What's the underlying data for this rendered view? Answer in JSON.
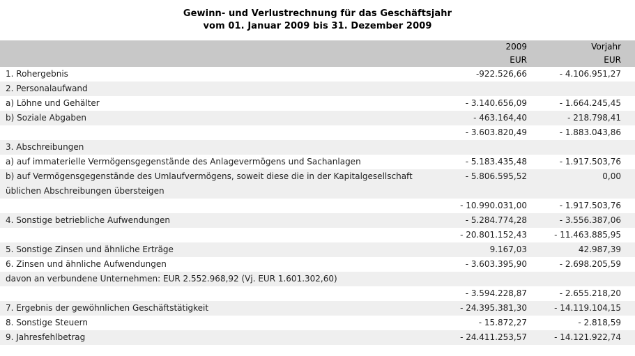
{
  "title": {
    "line1": "Gewinn- und Verlustrechnung für das Geschäftsjahr",
    "line2": "vom 01. Januar 2009 bis 31. Dezember 2009"
  },
  "table": {
    "header": {
      "current_year": "2009",
      "current_currency": "EUR",
      "previous_label": "Vorjahr",
      "previous_currency": "EUR"
    },
    "rows": [
      {
        "label": "1. Rohergebnis",
        "value_2009": "-922.526,66",
        "value_vorjahr": "- 4.106.951,27",
        "shaded": false
      },
      {
        "label": "2. Personalaufwand",
        "value_2009": "",
        "value_vorjahr": "",
        "shaded": true
      },
      {
        "label": "a) Löhne und Gehälter",
        "value_2009": "- 3.140.656,09",
        "value_vorjahr": "- 1.664.245,45",
        "shaded": false
      },
      {
        "label": "b) Soziale Abgaben",
        "value_2009": "- 463.164,40",
        "value_vorjahr": "- 218.798,41",
        "shaded": true
      },
      {
        "label": "",
        "value_2009": "- 3.603.820,49",
        "value_vorjahr": "- 1.883.043,86",
        "shaded": false
      },
      {
        "label": "3. Abschreibungen",
        "value_2009": "",
        "value_vorjahr": "",
        "shaded": true
      },
      {
        "label": "a) auf immaterielle Vermögensgegenstände des Anlagevermögens und Sachanlagen",
        "value_2009": "- 5.183.435,48",
        "value_vorjahr": "- 1.917.503,76",
        "shaded": false
      },
      {
        "label": "b) auf Vermögensgegenstände des Umlaufvermögens, soweit diese die in der Kapitalgesellschaft üblichen Abschreibungen übersteigen",
        "value_2009": "- 5.806.595,52",
        "value_vorjahr": "0,00",
        "shaded": true
      },
      {
        "label": "",
        "value_2009": "- 10.990.031,00",
        "value_vorjahr": "- 1.917.503,76",
        "shaded": false
      },
      {
        "label": "4. Sonstige betriebliche Aufwendungen",
        "value_2009": "- 5.284.774,28",
        "value_vorjahr": "- 3.556.387,06",
        "shaded": true
      },
      {
        "label": "",
        "value_2009": "- 20.801.152,43",
        "value_vorjahr": "- 11.463.885,95",
        "shaded": false
      },
      {
        "label": "5. Sonstige Zinsen und ähnliche Erträge",
        "value_2009": "9.167,03",
        "value_vorjahr": "42.987,39",
        "shaded": true
      },
      {
        "label": "6. Zinsen und ähnliche Aufwendungen",
        "value_2009": "- 3.603.395,90",
        "value_vorjahr": "- 2.698.205,59",
        "shaded": false
      },
      {
        "label": "davon an verbundene Unternehmen: EUR 2.552.968,92 (Vj. EUR 1.601.302,60)",
        "value_2009": "",
        "value_vorjahr": "",
        "shaded": true
      },
      {
        "label": "",
        "value_2009": "- 3.594.228,87",
        "value_vorjahr": "- 2.655.218,20",
        "shaded": false
      },
      {
        "label": "7. Ergebnis der gewöhnlichen Geschäftstätigkeit",
        "value_2009": "- 24.395.381,30",
        "value_vorjahr": "- 14.119.104,15",
        "shaded": true
      },
      {
        "label": "8. Sonstige Steuern",
        "value_2009": "- 15.872,27",
        "value_vorjahr": "- 2.818,59",
        "shaded": false
      },
      {
        "label": "9. Jahresfehlbetrag",
        "value_2009": "- 24.411.253,57",
        "value_vorjahr": "- 14.121.922,74",
        "shaded": true
      }
    ]
  },
  "colors": {
    "header_bg": "#c8c8c8",
    "shaded_row_bg": "#efefef",
    "text": "#1f1f1f",
    "title_text": "#000000",
    "page_bg": "#ffffff"
  }
}
